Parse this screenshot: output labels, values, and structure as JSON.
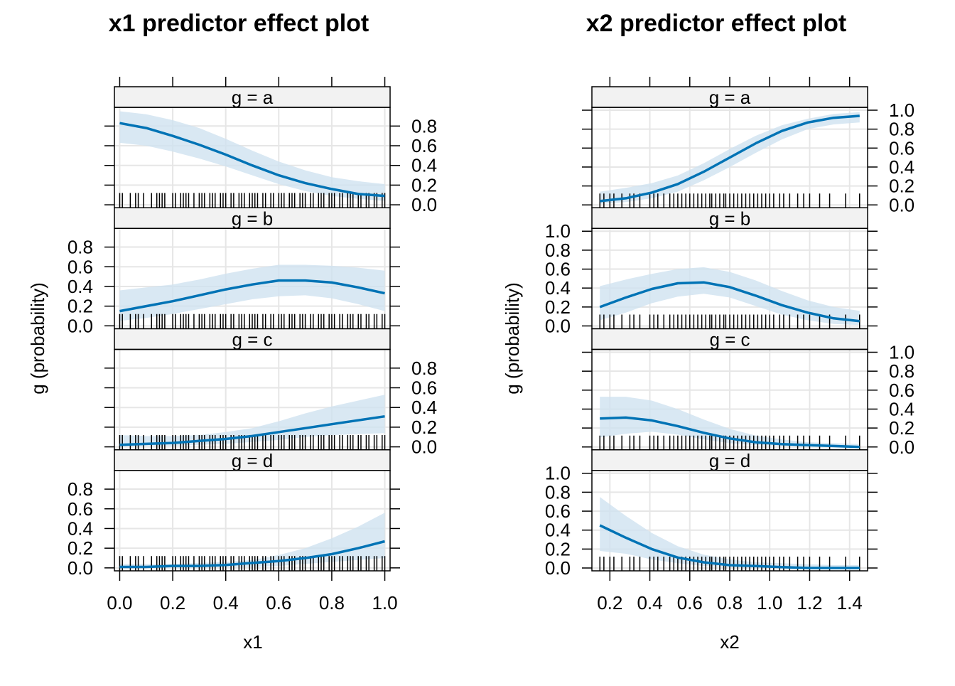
{
  "colors": {
    "line": "#0073b5",
    "band": "#cfe2f0",
    "strip": "#f2f2f2",
    "grid": "#e6e6e6",
    "rug": "#000000",
    "frame": "#000000"
  },
  "chart_data": [
    {
      "type": "line",
      "title": "x1 predictor effect plot",
      "xlabel": "x1",
      "ylabel": "g (probability)",
      "xlim": [
        -0.02,
        1.02
      ],
      "ylim": [
        -0.03,
        0.99
      ],
      "xticks": [
        0.0,
        0.2,
        0.4,
        0.6,
        0.8,
        1.0
      ],
      "xtick_labels": [
        "0.0",
        "0.2",
        "0.4",
        "0.6",
        "0.8",
        "1.0"
      ],
      "yticks": [
        0.0,
        0.2,
        0.4,
        0.6,
        0.8
      ],
      "ytick_labels": [
        "0.0",
        "0.2",
        "0.4",
        "0.6",
        "0.8"
      ],
      "x": [
        0.0,
        0.1,
        0.2,
        0.3,
        0.4,
        0.5,
        0.6,
        0.7,
        0.8,
        0.9,
        1.0
      ],
      "rug": [
        0.0,
        0.01,
        0.04,
        0.06,
        0.07,
        0.09,
        0.12,
        0.14,
        0.15,
        0.16,
        0.17,
        0.2,
        0.21,
        0.23,
        0.24,
        0.25,
        0.26,
        0.28,
        0.3,
        0.31,
        0.32,
        0.34,
        0.35,
        0.36,
        0.38,
        0.39,
        0.4,
        0.42,
        0.43,
        0.45,
        0.46,
        0.47,
        0.49,
        0.5,
        0.51,
        0.52,
        0.54,
        0.55,
        0.57,
        0.58,
        0.6,
        0.61,
        0.62,
        0.64,
        0.65,
        0.66,
        0.68,
        0.69,
        0.7,
        0.72,
        0.73,
        0.75,
        0.76,
        0.77,
        0.79,
        0.8,
        0.81,
        0.83,
        0.84,
        0.86,
        0.87,
        0.88,
        0.9,
        0.91,
        0.93,
        0.94,
        0.96,
        0.97,
        0.99,
        1.0
      ],
      "panels": [
        {
          "strip": "g = a",
          "fit": [
            0.83,
            0.78,
            0.7,
            0.61,
            0.51,
            0.4,
            0.3,
            0.22,
            0.16,
            0.11,
            0.09
          ],
          "lower": [
            0.63,
            0.6,
            0.54,
            0.47,
            0.39,
            0.3,
            0.21,
            0.14,
            0.09,
            0.06,
            0.04
          ],
          "upper": [
            0.95,
            0.92,
            0.86,
            0.78,
            0.67,
            0.55,
            0.44,
            0.35,
            0.28,
            0.24,
            0.21
          ]
        },
        {
          "strip": "g = b",
          "fit": [
            0.15,
            0.2,
            0.25,
            0.31,
            0.37,
            0.42,
            0.46,
            0.46,
            0.44,
            0.39,
            0.33
          ],
          "lower": [
            0.05,
            0.08,
            0.12,
            0.17,
            0.22,
            0.27,
            0.3,
            0.31,
            0.28,
            0.22,
            0.15
          ],
          "upper": [
            0.36,
            0.39,
            0.42,
            0.47,
            0.53,
            0.58,
            0.62,
            0.62,
            0.61,
            0.59,
            0.56
          ]
        },
        {
          "strip": "g = c",
          "fit": [
            0.02,
            0.03,
            0.04,
            0.06,
            0.08,
            0.11,
            0.15,
            0.19,
            0.23,
            0.27,
            0.31
          ],
          "lower": [
            0.0,
            0.01,
            0.01,
            0.02,
            0.03,
            0.05,
            0.07,
            0.1,
            0.12,
            0.13,
            0.14
          ],
          "upper": [
            0.12,
            0.11,
            0.11,
            0.12,
            0.15,
            0.19,
            0.26,
            0.34,
            0.41,
            0.47,
            0.53
          ]
        },
        {
          "strip": "g = d",
          "fit": [
            0.01,
            0.01,
            0.02,
            0.02,
            0.03,
            0.05,
            0.07,
            0.1,
            0.14,
            0.2,
            0.27
          ],
          "lower": [
            0.0,
            0.0,
            0.0,
            0.0,
            0.01,
            0.01,
            0.02,
            0.04,
            0.06,
            0.08,
            0.1
          ],
          "upper": [
            0.04,
            0.04,
            0.04,
            0.05,
            0.06,
            0.08,
            0.13,
            0.2,
            0.3,
            0.42,
            0.56
          ]
        }
      ],
      "left_axis_panels": [
        1,
        3
      ],
      "right_axis_panels": [
        0,
        2
      ]
    },
    {
      "type": "line",
      "title": "x2 predictor effect plot",
      "xlabel": "x2",
      "ylabel": "g (probability)",
      "xlim": [
        0.11,
        1.49
      ],
      "ylim": [
        -0.03,
        1.03
      ],
      "xticks": [
        0.2,
        0.4,
        0.6,
        0.8,
        1.0,
        1.2,
        1.4
      ],
      "xtick_labels": [
        "0.2",
        "0.4",
        "0.6",
        "0.8",
        "1.0",
        "1.2",
        "1.4"
      ],
      "yticks": [
        0.0,
        0.2,
        0.4,
        0.6,
        0.8,
        1.0
      ],
      "ytick_labels": [
        "0.0",
        "0.2",
        "0.4",
        "0.6",
        "0.8",
        "1.0"
      ],
      "x": [
        0.15,
        0.28,
        0.41,
        0.54,
        0.67,
        0.8,
        0.93,
        1.06,
        1.19,
        1.32,
        1.45
      ],
      "rug": [
        0.15,
        0.17,
        0.2,
        0.22,
        0.26,
        0.3,
        0.32,
        0.35,
        0.4,
        0.42,
        0.44,
        0.47,
        0.5,
        0.52,
        0.54,
        0.56,
        0.58,
        0.6,
        0.62,
        0.64,
        0.66,
        0.68,
        0.7,
        0.71,
        0.73,
        0.75,
        0.77,
        0.78,
        0.8,
        0.82,
        0.84,
        0.86,
        0.88,
        0.9,
        0.92,
        0.94,
        0.96,
        0.98,
        1.0,
        1.02,
        1.05,
        1.07,
        1.1,
        1.14,
        1.17,
        1.2,
        1.25,
        1.3,
        1.38,
        1.45
      ],
      "panels": [
        {
          "strip": "g = a",
          "fit": [
            0.04,
            0.07,
            0.13,
            0.22,
            0.35,
            0.5,
            0.65,
            0.78,
            0.87,
            0.92,
            0.94
          ],
          "lower": [
            0.01,
            0.03,
            0.07,
            0.14,
            0.26,
            0.4,
            0.55,
            0.69,
            0.8,
            0.85,
            0.87
          ],
          "upper": [
            0.14,
            0.18,
            0.23,
            0.31,
            0.44,
            0.59,
            0.73,
            0.84,
            0.91,
            0.96,
            0.98
          ]
        },
        {
          "strip": "g = b",
          "fit": [
            0.2,
            0.3,
            0.39,
            0.45,
            0.46,
            0.41,
            0.32,
            0.22,
            0.14,
            0.08,
            0.05
          ],
          "lower": [
            0.06,
            0.14,
            0.24,
            0.31,
            0.34,
            0.3,
            0.21,
            0.12,
            0.06,
            0.02,
            0.01
          ],
          "upper": [
            0.42,
            0.49,
            0.55,
            0.6,
            0.62,
            0.57,
            0.48,
            0.37,
            0.27,
            0.2,
            0.16
          ]
        },
        {
          "strip": "g = c",
          "fit": [
            0.3,
            0.31,
            0.28,
            0.22,
            0.15,
            0.09,
            0.05,
            0.03,
            0.02,
            0.01,
            0.0
          ],
          "lower": [
            0.1,
            0.14,
            0.16,
            0.13,
            0.08,
            0.04,
            0.02,
            0.01,
            0.0,
            0.0,
            0.0
          ],
          "upper": [
            0.53,
            0.53,
            0.49,
            0.4,
            0.29,
            0.19,
            0.12,
            0.08,
            0.05,
            0.04,
            0.03
          ]
        },
        {
          "strip": "g = d",
          "fit": [
            0.45,
            0.32,
            0.2,
            0.11,
            0.06,
            0.03,
            0.02,
            0.01,
            0.0,
            0.0,
            0.0
          ],
          "lower": [
            0.18,
            0.15,
            0.09,
            0.05,
            0.02,
            0.01,
            0.0,
            0.0,
            0.0,
            0.0,
            0.0
          ],
          "upper": [
            0.75,
            0.55,
            0.37,
            0.23,
            0.14,
            0.09,
            0.06,
            0.05,
            0.04,
            0.03,
            0.03
          ]
        }
      ],
      "left_axis_panels": [
        1,
        3
      ],
      "right_axis_panels": [
        0,
        2
      ]
    }
  ]
}
